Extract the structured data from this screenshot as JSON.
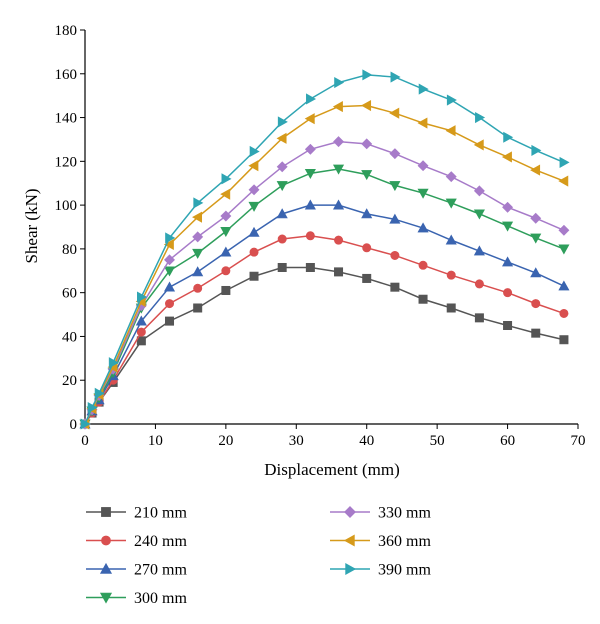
{
  "chart_data": {
    "type": "line",
    "xlabel": "Displacement (mm)",
    "ylabel": "Shear (kN)",
    "xlim": [
      0,
      70
    ],
    "ylim": [
      0,
      180
    ],
    "xticks": [
      0,
      10,
      20,
      30,
      40,
      50,
      60,
      70
    ],
    "yticks": [
      0,
      20,
      40,
      60,
      80,
      100,
      120,
      140,
      160,
      180
    ],
    "grid": false,
    "legend_position": "bottom",
    "x": [
      0,
      1,
      2,
      4,
      8,
      12,
      16,
      20,
      24,
      28,
      32,
      36,
      40,
      44,
      48,
      52,
      56,
      60,
      64,
      68
    ],
    "series": [
      {
        "name": "210 mm",
        "marker": "square",
        "color": "#555555",
        "values": [
          0,
          5,
          10,
          19,
          38,
          47,
          53,
          61,
          67.5,
          71.5,
          71.5,
          69.5,
          66.5,
          62.5,
          57,
          53,
          48.5,
          45,
          41.5,
          38.5
        ]
      },
      {
        "name": "240 mm",
        "marker": "circle",
        "color": "#d94f4f",
        "values": [
          0,
          5,
          10,
          20,
          42,
          55,
          62,
          70,
          78.5,
          84.5,
          86,
          84,
          80.5,
          77,
          72.5,
          68,
          64,
          60,
          55,
          50.5
        ]
      },
      {
        "name": "270 mm",
        "marker": "triangle-up",
        "color": "#3a64b0",
        "values": [
          0,
          6,
          11,
          22,
          47,
          62.5,
          69.5,
          78.5,
          87.5,
          96,
          100,
          100,
          96,
          93.5,
          89.5,
          84,
          79,
          74,
          69,
          63
        ]
      },
      {
        "name": "300 mm",
        "marker": "triangle-down",
        "color": "#2e9e5b",
        "values": [
          0,
          6,
          12,
          23.5,
          53,
          70,
          78,
          88,
          99.5,
          109,
          114.5,
          116.5,
          114,
          109,
          105.5,
          101,
          96,
          90.5,
          85,
          80
        ]
      },
      {
        "name": "330 mm",
        "marker": "diamond",
        "color": "#a77bc9",
        "values": [
          0,
          6.5,
          13,
          25,
          54,
          75,
          85.5,
          95,
          107,
          117.5,
          125.5,
          129,
          128,
          123.5,
          118,
          113,
          106.5,
          99,
          94,
          88.5
        ]
      },
      {
        "name": "360 mm",
        "marker": "triangle-left",
        "color": "#d69a1a",
        "values": [
          0,
          7,
          13.5,
          26,
          56,
          82,
          94.5,
          105,
          118,
          130.5,
          139.5,
          145,
          145.5,
          142,
          137.5,
          134,
          127.5,
          122,
          116,
          111
        ]
      },
      {
        "name": "390 mm",
        "marker": "triangle-right",
        "color": "#2fa5b3",
        "values": [
          0,
          7.5,
          14,
          28,
          58,
          85,
          101,
          112,
          124.5,
          138,
          148.5,
          156,
          159.5,
          158.5,
          153,
          148,
          140,
          131,
          125,
          119.5
        ]
      }
    ]
  }
}
